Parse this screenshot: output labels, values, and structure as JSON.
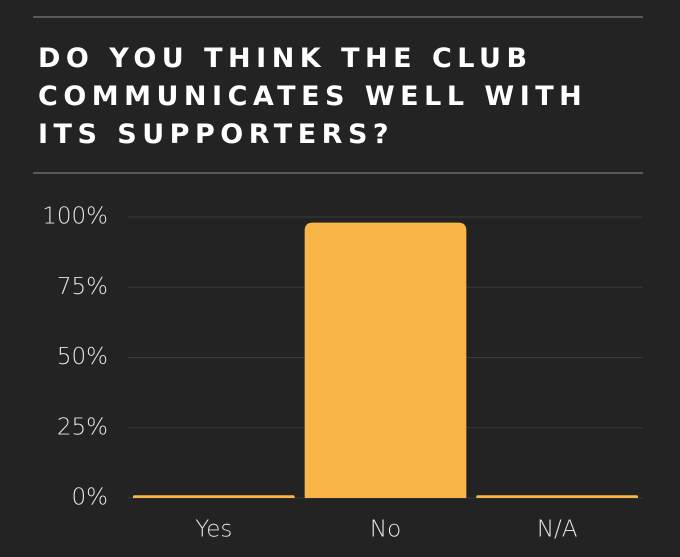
{
  "chart_data": {
    "type": "bar",
    "title": "DO YOU THINK THE CLUB COMMUNICATES WELL WITH ITS SUPPORTERS?",
    "categories": [
      "Yes",
      "No",
      "N/A"
    ],
    "values": [
      1,
      98,
      1
    ],
    "color": "#f9b548",
    "ylim": [
      0,
      100
    ],
    "yticks": [
      {
        "value": 0,
        "label": "0%"
      },
      {
        "value": 25,
        "label": "25%"
      },
      {
        "value": 50,
        "label": "50%"
      },
      {
        "value": 75,
        "label": "75%"
      },
      {
        "value": 100,
        "label": "100%"
      }
    ],
    "grid": true
  }
}
